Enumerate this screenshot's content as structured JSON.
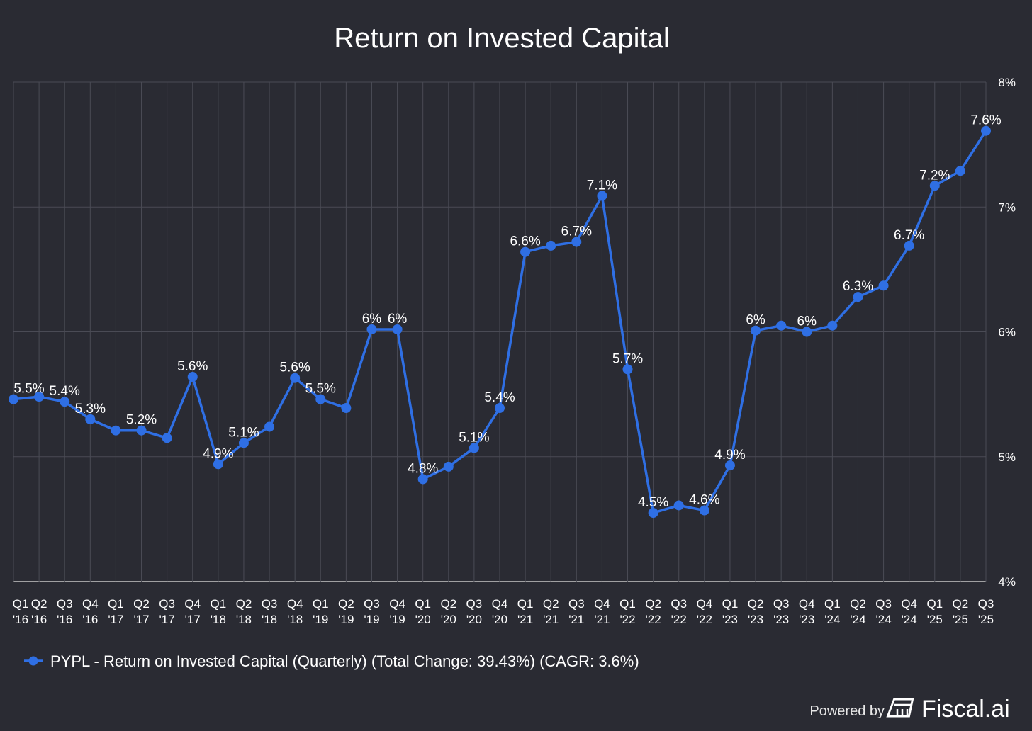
{
  "chart_data": {
    "type": "line",
    "title": "Return on Invested Capital",
    "ylim": [
      4,
      8
    ],
    "y_ticks": [
      "8%",
      "7%",
      "6%",
      "5%",
      "4%"
    ],
    "y_tick_values": [
      8,
      7,
      6,
      5,
      4
    ],
    "y_axis_side": "right",
    "grid": true,
    "legend_placement": "bottom-left",
    "categories": [
      [
        "Q1",
        "'16"
      ],
      [
        "Q2",
        "'16"
      ],
      [
        "Q3",
        "'16"
      ],
      [
        "Q4",
        "'16"
      ],
      [
        "Q1",
        "'17"
      ],
      [
        "Q2",
        "'17"
      ],
      [
        "Q3",
        "'17"
      ],
      [
        "Q4",
        "'17"
      ],
      [
        "Q1",
        "'18"
      ],
      [
        "Q2",
        "'18"
      ],
      [
        "Q3",
        "'18"
      ],
      [
        "Q4",
        "'18"
      ],
      [
        "Q1",
        "'19"
      ],
      [
        "Q2",
        "'19"
      ],
      [
        "Q3",
        "'19"
      ],
      [
        "Q4",
        "'19"
      ],
      [
        "Q1",
        "'20"
      ],
      [
        "Q2",
        "'20"
      ],
      [
        "Q3",
        "'20"
      ],
      [
        "Q4",
        "'20"
      ],
      [
        "Q1",
        "'21"
      ],
      [
        "Q2",
        "'21"
      ],
      [
        "Q3",
        "'21"
      ],
      [
        "Q4",
        "'21"
      ],
      [
        "Q1",
        "'22"
      ],
      [
        "Q2",
        "'22"
      ],
      [
        "Q3",
        "'22"
      ],
      [
        "Q4",
        "'22"
      ],
      [
        "Q1",
        "'23"
      ],
      [
        "Q2",
        "'23"
      ],
      [
        "Q3",
        "'23"
      ],
      [
        "Q4",
        "'23"
      ],
      [
        "Q1",
        "'24"
      ],
      [
        "Q2",
        "'24"
      ],
      [
        "Q3",
        "'24"
      ],
      [
        "Q4",
        "'24"
      ],
      [
        "Q1",
        "'25"
      ],
      [
        "Q2",
        "'25"
      ],
      [
        "Q3",
        "'25"
      ]
    ],
    "series": [
      {
        "name": "PYPL - Return on Invested Capital (Quarterly) (Total Change: 39.43%) (CAGR: 3.6%)",
        "color": "#2f6fe4",
        "values": [
          5.46,
          5.48,
          5.44,
          5.3,
          5.21,
          5.21,
          5.15,
          5.64,
          4.94,
          5.11,
          5.24,
          5.63,
          5.46,
          5.39,
          6.02,
          6.02,
          4.82,
          4.92,
          5.07,
          5.39,
          6.64,
          6.69,
          6.72,
          7.09,
          5.7,
          4.55,
          4.61,
          4.57,
          4.93,
          6.01,
          6.05,
          6.0,
          6.05,
          6.28,
          6.37,
          6.69,
          7.17,
          7.29,
          7.61
        ],
        "labels": [
          "5.5%",
          null,
          "5.4%",
          "5.3%",
          null,
          "5.2%",
          null,
          "5.6%",
          "4.9%",
          "5.1%",
          null,
          "5.6%",
          "5.5%",
          null,
          "6%",
          "6%",
          "4.8%",
          null,
          "5.1%",
          "5.4%",
          "6.6%",
          null,
          "6.7%",
          "7.1%",
          "5.7%",
          "4.5%",
          null,
          "4.6%",
          "4.9%",
          "6%",
          null,
          "6%",
          null,
          "6.3%",
          null,
          "6.7%",
          "7.2%",
          null,
          "7.6%"
        ]
      }
    ]
  },
  "footer": {
    "powered_by": "Powered by",
    "brand": "Fiscal.ai",
    "brand_icon": "fiscal-ai-logo-icon"
  }
}
